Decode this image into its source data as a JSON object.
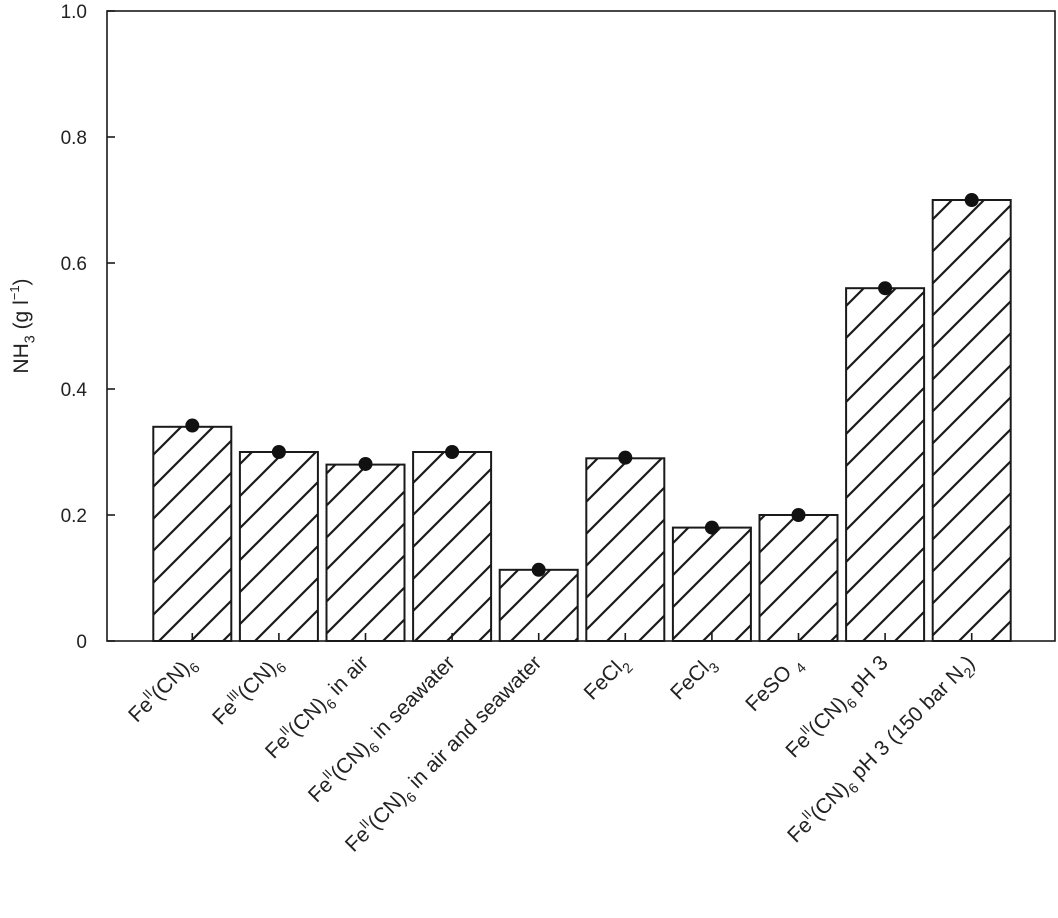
{
  "chart_data": {
    "type": "bar",
    "ylabel": {
      "main": "NH",
      "sub": "3",
      "rest": " (g l",
      "sup": "−1",
      "close": ")"
    },
    "ylim": [
      0,
      1.0
    ],
    "yticks": [
      "0",
      "0.2",
      "0.4",
      "0.6",
      "0.8",
      "1.0"
    ],
    "grid": false,
    "categories": [
      [
        {
          "t": "Fe"
        },
        {
          "t": "II",
          "s": "sup"
        },
        {
          "t": "(CN)"
        },
        {
          "t": "6",
          "s": "sub"
        }
      ],
      [
        {
          "t": "Fe"
        },
        {
          "t": "III",
          "s": "sup"
        },
        {
          "t": "(CN)"
        },
        {
          "t": "6",
          "s": "sub"
        }
      ],
      [
        {
          "t": "Fe"
        },
        {
          "t": "II",
          "s": "sup"
        },
        {
          "t": "(CN)"
        },
        {
          "t": "6",
          "s": "sub"
        },
        {
          "t": " in air"
        }
      ],
      [
        {
          "t": "Fe"
        },
        {
          "t": "II",
          "s": "sup"
        },
        {
          "t": "(CN)"
        },
        {
          "t": "6",
          "s": "sub"
        },
        {
          "t": " in seawater"
        }
      ],
      [
        {
          "t": "Fe"
        },
        {
          "t": "II",
          "s": "sup"
        },
        {
          "t": "(CN)"
        },
        {
          "t": "6",
          "s": "sub"
        },
        {
          "t": " in air and seawater"
        }
      ],
      [
        {
          "t": "FeCl"
        },
        {
          "t": "2",
          "s": "sub"
        }
      ],
      [
        {
          "t": "FeCl"
        },
        {
          "t": "3",
          "s": "sub"
        }
      ],
      [
        {
          "t": "FeSO "
        },
        {
          "t": "4",
          "s": "sub"
        }
      ],
      [
        {
          "t": "Fe"
        },
        {
          "t": "II",
          "s": "sup"
        },
        {
          "t": "(CN)"
        },
        {
          "t": "6",
          "s": "sub"
        },
        {
          "t": " pH 3"
        }
      ],
      [
        {
          "t": "Fe"
        },
        {
          "t": "II",
          "s": "sup"
        },
        {
          "t": "(CN)"
        },
        {
          "t": "6",
          "s": "sub"
        },
        {
          "t": " pH 3 (150 bar N"
        },
        {
          "t": "2",
          "s": "sub"
        },
        {
          "t": ")"
        }
      ]
    ],
    "values": [
      0.34,
      0.3,
      0.28,
      0.3,
      0.113,
      0.29,
      0.18,
      0.2,
      0.56,
      0.7
    ],
    "points": [
      0.342,
      0.3,
      0.281,
      0.3,
      0.113,
      0.291,
      0.18,
      0.2,
      0.56,
      0.7
    ],
    "colors": {
      "bar_fill": "#ffffff",
      "hatch": "#1a1a1a",
      "point": "#111111",
      "axis": "#1a1a1a"
    }
  }
}
